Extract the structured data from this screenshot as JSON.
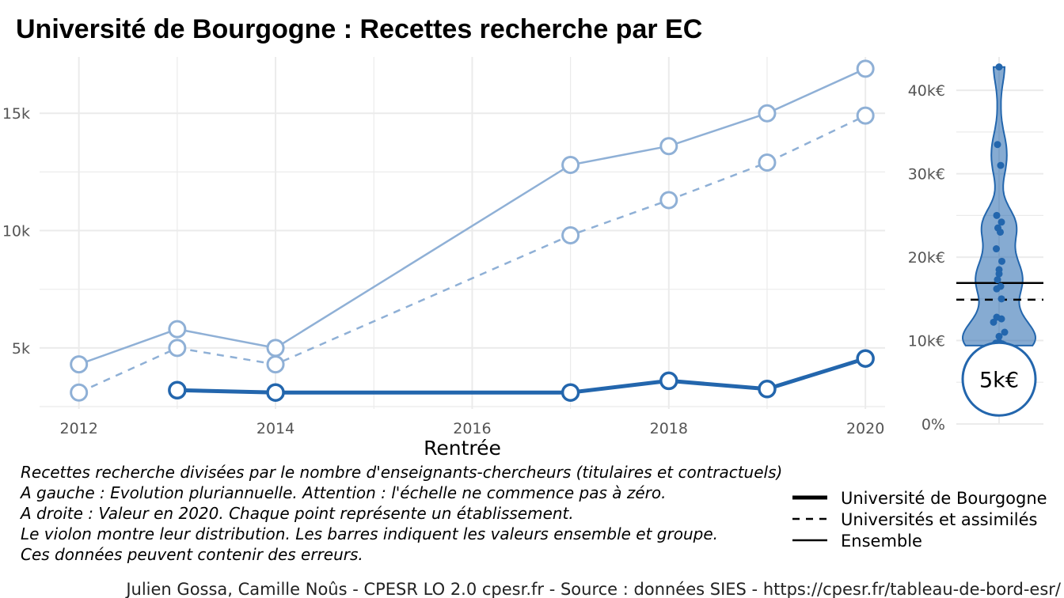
{
  "title": "Université de Bourgogne  :  Recettes recherche par EC",
  "colors": {
    "dark_blue": "#2366ad",
    "light_blue": "#8fb0d6",
    "grid": "#ebebeb"
  },
  "chart_data": [
    {
      "type": "line",
      "xlabel": "Rentrée",
      "ylabel": "",
      "x_ticks": [
        2012,
        2014,
        2016,
        2018,
        2020
      ],
      "y_ticks": [
        {
          "value": 5000,
          "label": "5k"
        },
        {
          "value": 10000,
          "label": "10k"
        },
        {
          "value": 15000,
          "label": "15k"
        }
      ],
      "xlim": [
        2011.6,
        2020.2
      ],
      "ylim": [
        2400,
        17400
      ],
      "grid": true,
      "series": [
        {
          "name": "Ensemble",
          "style": "solid-thin",
          "points": [
            [
              2012,
              4300
            ],
            [
              2013,
              5800
            ],
            [
              2014,
              5000
            ],
            [
              2017,
              12800
            ],
            [
              2018,
              13600
            ],
            [
              2019,
              15000
            ],
            [
              2020,
              16900
            ]
          ]
        },
        {
          "name": "Universités et assimilés",
          "style": "dashed",
          "points": [
            [
              2012,
              3100
            ],
            [
              2013,
              5000
            ],
            [
              2014,
              4300
            ],
            [
              2017,
              9800
            ],
            [
              2018,
              11300
            ],
            [
              2019,
              12900
            ],
            [
              2020,
              14900
            ]
          ]
        },
        {
          "name": "Université de Bourgogne",
          "style": "solid-thick",
          "points": [
            [
              2013,
              3200
            ],
            [
              2014,
              3100
            ],
            [
              2017,
              3100
            ],
            [
              2018,
              3600
            ],
            [
              2019,
              3250
            ],
            [
              2020,
              4550
            ]
          ]
        }
      ]
    },
    {
      "type": "violin",
      "y_ticks": [
        {
          "value": 0,
          "label": "0%"
        },
        {
          "value": 10000,
          "label": "10k€"
        },
        {
          "value": 20000,
          "label": "20k€"
        },
        {
          "value": 30000,
          "label": "30k€"
        },
        {
          "value": 40000,
          "label": "40k€"
        }
      ],
      "ylim": [
        0,
        44000
      ],
      "ensemble_value": 16900,
      "group_value": 14900,
      "highlight_label": "5k€",
      "points": [
        42800,
        33500,
        31000,
        25000,
        24200,
        23500,
        23000,
        21000,
        19500,
        18500,
        18000,
        17300,
        16500,
        16200,
        15000,
        12800,
        12600,
        12200,
        11000,
        10500,
        9800,
        9700,
        9600,
        9500,
        9500,
        9400
      ]
    }
  ],
  "notes": [
    "Recettes recherche divisées par le nombre d'enseignants-chercheurs (titulaires et contractuels)",
    "A gauche : Evolution pluriannuelle. Attention : l'échelle ne commence pas à zéro.",
    "A droite : Valeur en 2020. Chaque point représente un établissement.",
    "Le violon montre leur distribution. Les barres indiquent les valeurs ensemble et groupe.",
    "Ces données peuvent contenir des erreurs."
  ],
  "legend": [
    {
      "label": "Université de Bourgogne",
      "style": "thick"
    },
    {
      "label": "Universités et assimilés",
      "style": "dashed"
    },
    {
      "label": "Ensemble",
      "style": "thin"
    }
  ],
  "caption": "Julien Gossa, Camille Noûs - CPESR LO 2.0 cpesr.fr - Source : données SIES - https://cpesr.fr/tableau-de-bord-esr/"
}
